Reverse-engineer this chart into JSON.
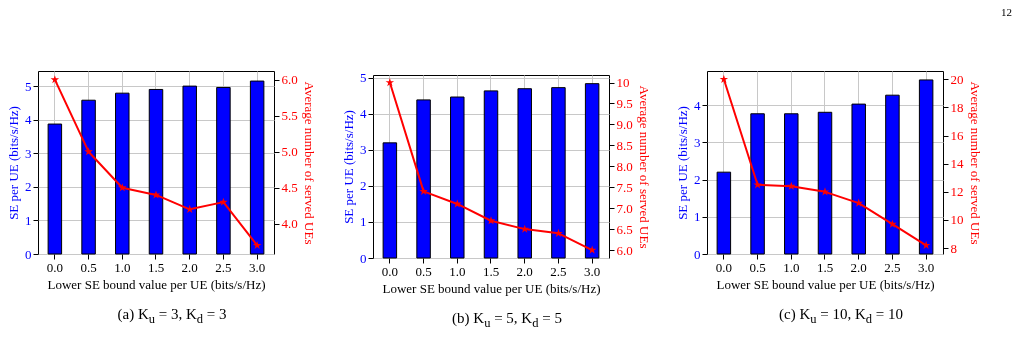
{
  "chart_data": [
    {
      "type": "bar",
      "title": "(a) K$_{u}$ = 3, K$_{d}$ = 3",
      "xlabel": "Lower SE bound value per UE (bits/s/Hz)",
      "ylabel": "SE per UE (bits/s/Hz)",
      "y2label": "Average number of served UEs",
      "categories": [
        "0.0",
        "0.5",
        "1.0",
        "1.5",
        "2.0",
        "2.5",
        "3.0"
      ],
      "series": [
        {
          "color": "#0000ff",
          "values": [
            3.87,
            4.58,
            4.79,
            4.9,
            5.0,
            4.96,
            5.15
          ]
        },
        {
          "type": "line",
          "axis": "y2",
          "color": "#ff0000",
          "values": [
            6.0,
            5.0,
            4.5,
            4.4,
            4.2,
            4.3,
            3.7
          ]
        }
      ],
      "ylim": [
        0,
        5.45
      ],
      "yticks": [
        0,
        1,
        2,
        3,
        4,
        5
      ],
      "y2lim": [
        3.58,
        6.12
      ],
      "y2ticks": [
        {
          "value": 4,
          "label": "4.0"
        },
        {
          "value": 4.5,
          "label": "4.5"
        },
        {
          "value": 5,
          "label": "5.0"
        },
        {
          "value": 5.5,
          "label": "5.5"
        },
        {
          "value": 6,
          "label": "6.0"
        }
      ],
      "grid": true,
      "marker": "star"
    },
    {
      "type": "bar",
      "title": "(b) K$_{u}$ = 5, K$_{d}$ = 5",
      "xlabel": "Lower SE bound value per UE (bits/s/Hz)",
      "ylabel": "SE per UE (bits/s/Hz)",
      "y2label": "Average number of served UEs",
      "categories": [
        "0.0",
        "0.5",
        "1.0",
        "1.5",
        "2.0",
        "2.5",
        "3.0"
      ],
      "series": [
        {
          "color": "#0000ff",
          "values": [
            3.19,
            4.38,
            4.46,
            4.63,
            4.69,
            4.72,
            4.83
          ]
        },
        {
          "type": "line",
          "axis": "y2",
          "color": "#ff0000",
          "values": [
            10.0,
            7.4,
            7.1,
            6.7,
            6.5,
            6.4,
            6.0
          ]
        }
      ],
      "ylim": [
        0,
        5.07
      ],
      "yticks": [
        0,
        1,
        2,
        3,
        4,
        5
      ],
      "y2lim": [
        5.81,
        10.18
      ],
      "y2ticks": [
        {
          "value": 6,
          "label": "6.0"
        },
        {
          "value": 6.5,
          "label": "6.5"
        },
        {
          "value": 7,
          "label": "7.0"
        },
        {
          "value": 7.5,
          "label": "7.5"
        },
        {
          "value": 8,
          "label": "8.0"
        },
        {
          "value": 8.5,
          "label": "8.5"
        },
        {
          "value": 9,
          "label": "9.0"
        },
        {
          "value": 9.5,
          "label": "9.5"
        },
        10
      ],
      "grid": true,
      "marker": "star"
    },
    {
      "type": "bar",
      "title": "(c) K$_{u}$ = 10, K$_{d}$ = 10",
      "xlabel": "Lower SE bound value per UE (bits/s/Hz)",
      "ylabel": "SE per UE (bits/s/Hz)",
      "y2label": "Average number of served UEs",
      "categories": [
        "0.0",
        "0.5",
        "1.0",
        "1.5",
        "2.0",
        "2.5",
        "3.0"
      ],
      "series": [
        {
          "color": "#0000ff",
          "values": [
            2.2,
            3.77,
            3.77,
            3.81,
            4.03,
            4.27,
            4.68
          ]
        },
        {
          "type": "line",
          "axis": "y2",
          "color": "#ff0000",
          "values": [
            20.0,
            12.5,
            12.4,
            12.0,
            11.2,
            9.7,
            8.2
          ]
        }
      ],
      "ylim": [
        0,
        4.92
      ],
      "yticks": [
        0,
        1,
        2,
        3,
        4
      ],
      "y2lim": [
        7.58,
        20.59
      ],
      "y2ticks": [
        8,
        10,
        12,
        14,
        16,
        18,
        20
      ],
      "grid": true,
      "marker": "star",
      "annotations": [
        "12"
      ]
    }
  ]
}
